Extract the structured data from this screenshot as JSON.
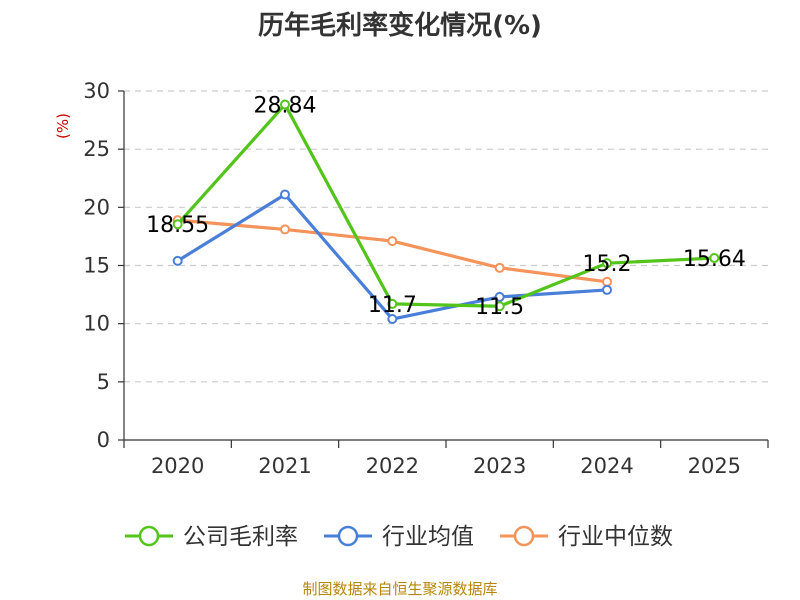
{
  "chart_data": {
    "type": "line",
    "title": "历年毛利率变化情况(%)",
    "ylabel": "(%)",
    "xlabel": "",
    "categories": [
      "2020",
      "2021",
      "2022",
      "2023",
      "2024",
      "2025"
    ],
    "ylim": [
      0,
      30
    ],
    "yticks": [
      0,
      5,
      10,
      15,
      20,
      25,
      30
    ],
    "grid": true,
    "legend_position": "bottom",
    "series": [
      {
        "name": "公司毛利率",
        "color": "#52c41a",
        "values": [
          18.55,
          28.84,
          11.7,
          11.5,
          15.2,
          15.64
        ],
        "labels": [
          "18.55",
          "28.84",
          "11.7",
          "11.5",
          "15.2",
          "15.64"
        ]
      },
      {
        "name": "行业均值",
        "color": "#4a7fd9",
        "values": [
          15.4,
          21.1,
          10.4,
          12.3,
          12.9,
          null
        ]
      },
      {
        "name": "行业中位数",
        "color": "#f4935a",
        "values": [
          18.9,
          18.1,
          17.1,
          14.8,
          13.6,
          null
        ]
      }
    ]
  },
  "source": "制图数据来自恒生聚源数据库"
}
